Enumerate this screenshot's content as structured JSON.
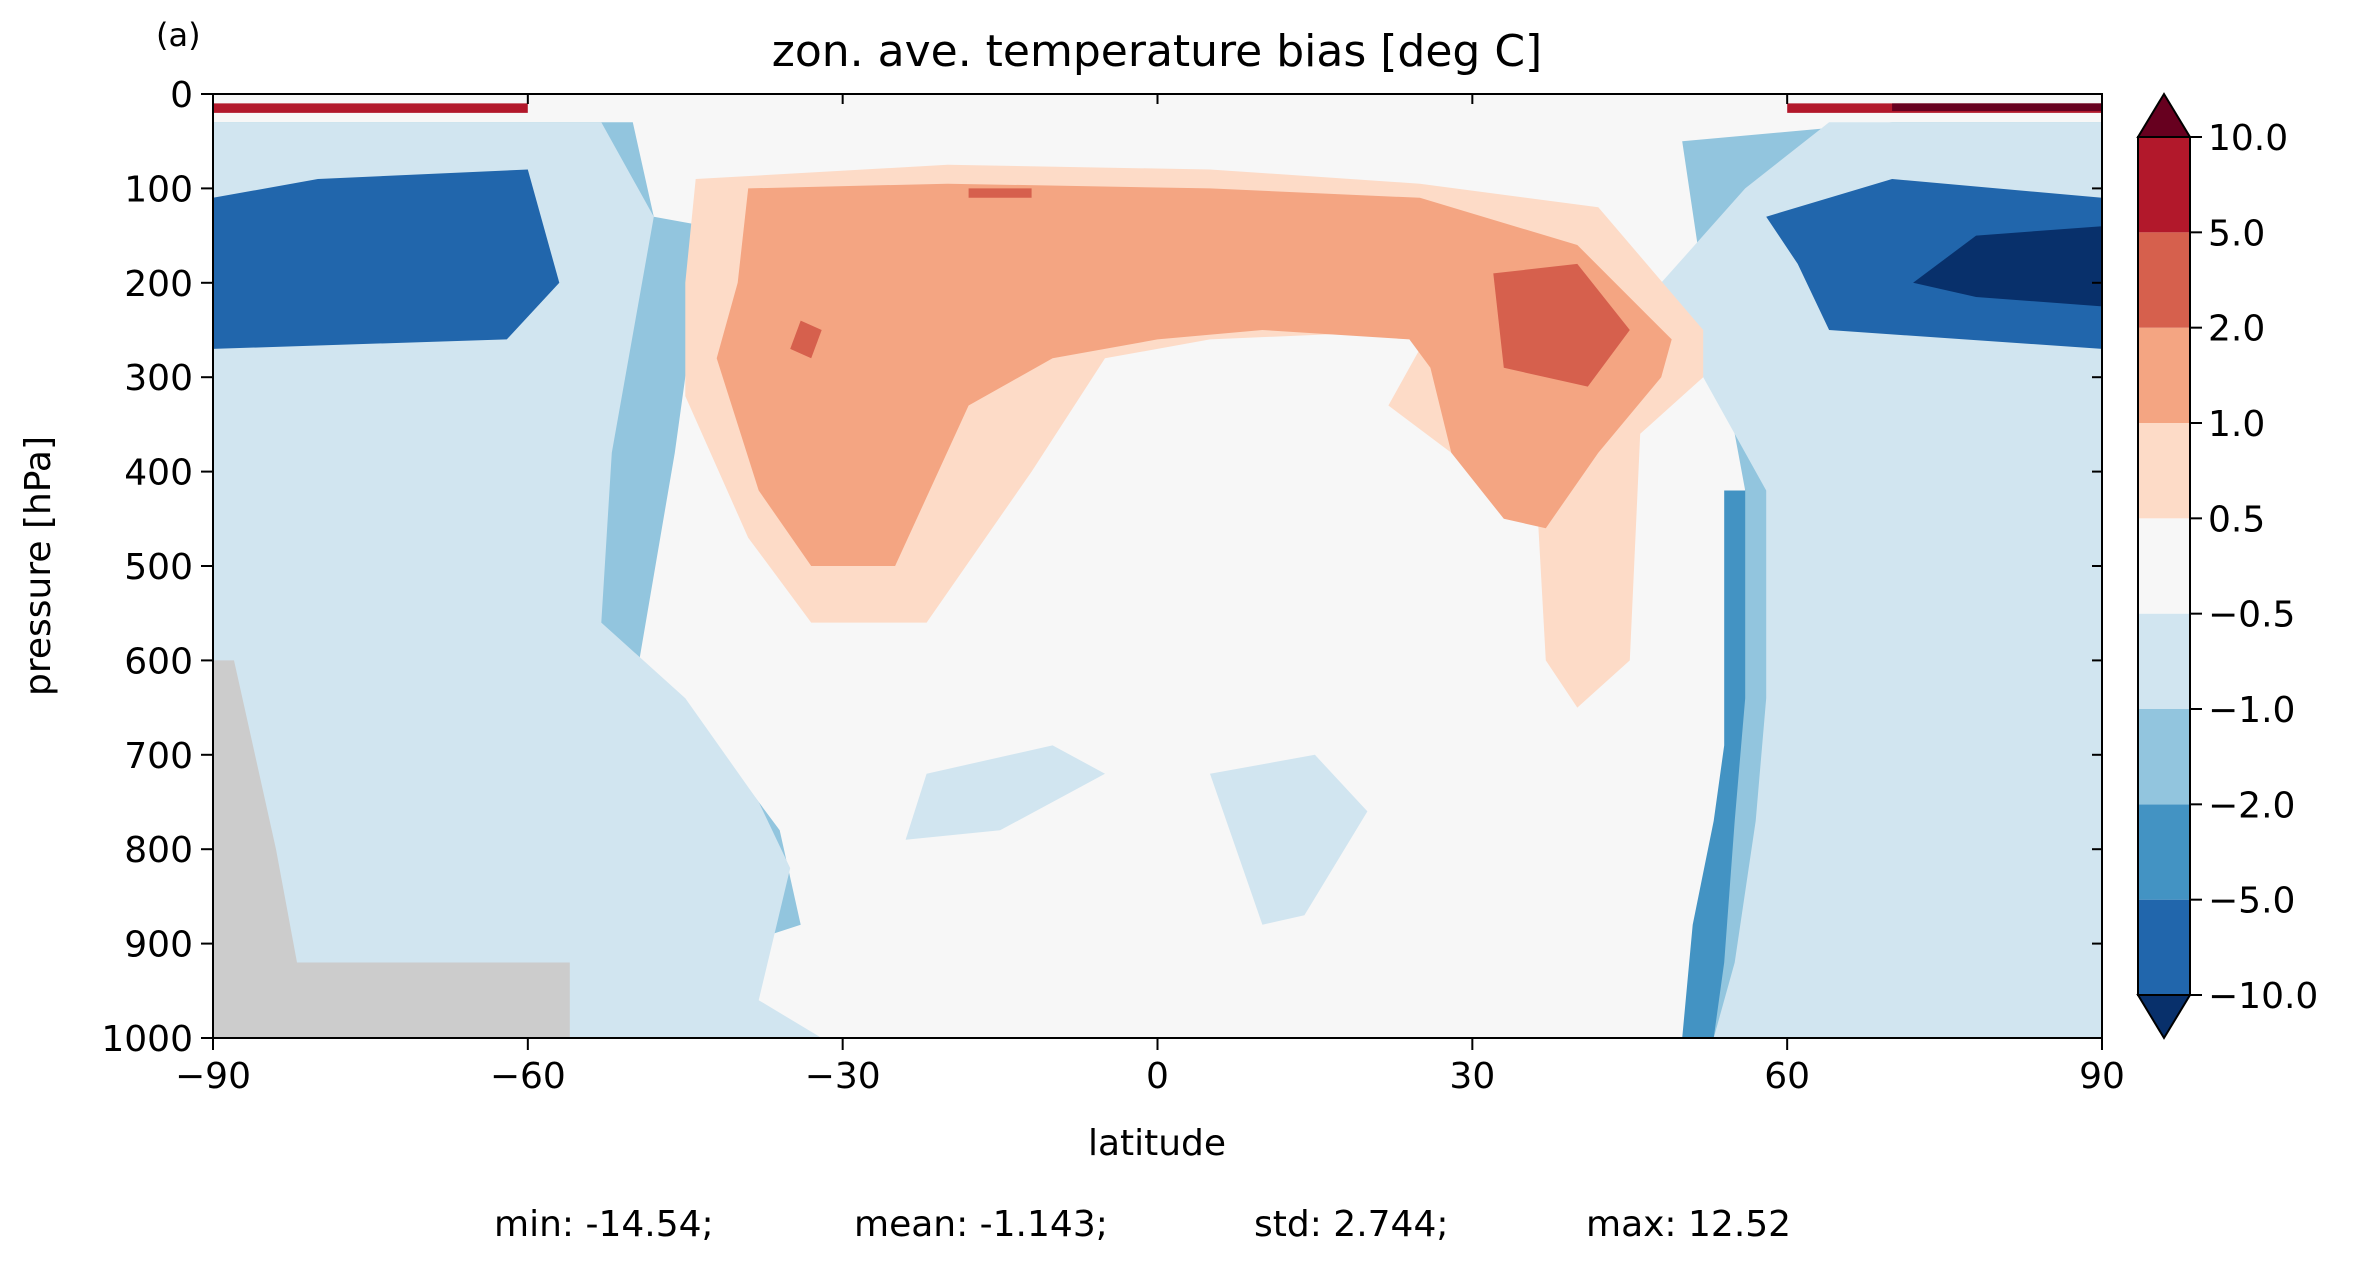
{
  "chart_data": {
    "type": "heatmap",
    "panel_label": "(a)",
    "title": "zon. ave. temperature bias [deg C]",
    "xlabel": "latitude",
    "ylabel": "pressure [hPa]",
    "xlim": [
      -90,
      90
    ],
    "ylim": [
      1000,
      0
    ],
    "y_inverted": true,
    "x_ticks": [
      -90,
      -60,
      -30,
      0,
      30,
      60,
      90
    ],
    "x_tick_labels": [
      "−90",
      "−60",
      "−30",
      "0",
      "30",
      "60",
      "90"
    ],
    "y_ticks": [
      0,
      100,
      200,
      300,
      400,
      500,
      600,
      700,
      800,
      900,
      1000
    ],
    "y_tick_labels": [
      "0",
      "100",
      "200",
      "300",
      "400",
      "500",
      "600",
      "700",
      "800",
      "900",
      "1000"
    ],
    "grid": false,
    "colorbar": {
      "position": "right",
      "extend": "both",
      "levels": [
        -10.0,
        -5.0,
        -2.0,
        -1.0,
        -0.5,
        0.5,
        1.0,
        2.0,
        5.0,
        10.0
      ],
      "tick_labels": [
        "−10.0",
        "−5.0",
        "−2.0",
        "−1.0",
        "−0.5",
        "0.5",
        "1.0",
        "2.0",
        "5.0",
        "10.0"
      ],
      "colors": [
        "#08306b",
        "#2166ac",
        "#4393c3",
        "#92c5de",
        "#d1e5f0",
        "#f7f7f7",
        "#fddbc7",
        "#f4a582",
        "#d6604d",
        "#b2182b",
        "#67001f"
      ]
    },
    "missing_color": "#cccccc",
    "bands": [
      {
        "name": "-5.0 to -2.0",
        "regions": [
          [
            [
              -90,
              60
            ],
            [
              -55,
              60
            ],
            [
              -55,
              270
            ],
            [
              -60,
              270
            ],
            [
              -60,
              470
            ],
            [
              -65,
              470
            ],
            [
              -65,
              640
            ],
            [
              -70,
              640
            ],
            [
              -75,
              620
            ],
            [
              -80,
              640
            ],
            [
              -86,
              620
            ],
            [
              -86,
              600
            ],
            [
              -90,
              600
            ]
          ],
          [
            [
              90,
              60
            ],
            [
              62,
              60
            ],
            [
              62,
              270
            ],
            [
              56,
              270
            ],
            [
              56,
              420
            ],
            [
              54,
              420
            ],
            [
              54,
              690
            ],
            [
              53,
              770
            ],
            [
              51,
              880
            ],
            [
              50,
              1000
            ],
            [
              90,
              1000
            ]
          ]
        ]
      },
      {
        "name": "-2.0 to -1.0",
        "regions": [
          [
            [
              -90,
              30
            ],
            [
              -50,
              30
            ],
            [
              -48,
              130
            ],
            [
              -43,
              140
            ],
            [
              -46,
              380
            ],
            [
              -50,
              640
            ],
            [
              -40,
              720
            ],
            [
              -36,
              780
            ],
            [
              -34,
              880
            ],
            [
              -56,
              960
            ],
            [
              -56,
              1000
            ],
            [
              -88,
              1000
            ],
            [
              -88,
              900
            ],
            [
              -90,
              900
            ]
          ],
          [
            [
              90,
              30
            ],
            [
              70,
              30
            ],
            [
              50,
              50
            ],
            [
              52,
              200
            ],
            [
              54,
              300
            ],
            [
              56,
              420
            ],
            [
              56,
              640
            ],
            [
              55,
              770
            ],
            [
              54,
              920
            ],
            [
              53,
              1000
            ],
            [
              90,
              1000
            ]
          ]
        ]
      },
      {
        "name": "-1.0 to -0.5",
        "regions": [
          [
            [
              -90,
              30
            ],
            [
              -53,
              30
            ],
            [
              -48,
              130
            ],
            [
              -52,
              380
            ],
            [
              -53,
              560
            ],
            [
              -45,
              640
            ],
            [
              -38,
              750
            ],
            [
              -35,
              820
            ],
            [
              -38,
              960
            ],
            [
              -32,
              1000
            ],
            [
              -90,
              1000
            ]
          ],
          [
            [
              90,
              30
            ],
            [
              64,
              30
            ],
            [
              56,
              100
            ],
            [
              48,
              200
            ],
            [
              52,
              300
            ],
            [
              58,
              420
            ],
            [
              58,
              640
            ],
            [
              57,
              770
            ],
            [
              55,
              920
            ],
            [
              53,
              1000
            ],
            [
              90,
              1000
            ]
          ],
          [
            [
              -22,
              720
            ],
            [
              -10,
              690
            ],
            [
              -5,
              720
            ],
            [
              -15,
              780
            ],
            [
              -24,
              790
            ]
          ],
          [
            [
              5,
              720
            ],
            [
              15,
              700
            ],
            [
              20,
              760
            ],
            [
              14,
              870
            ],
            [
              10,
              880
            ]
          ],
          [
            [
              -12,
              200
            ],
            [
              0,
              190
            ],
            [
              12,
              240
            ],
            [
              -4,
              270
            ],
            [
              -12,
              230
            ]
          ]
        ]
      },
      {
        "name": "-5.0 to -10.0",
        "regions": [
          [
            [
              -90,
              110
            ],
            [
              -80,
              90
            ],
            [
              -60,
              80
            ],
            [
              -57,
              200
            ],
            [
              -62,
              260
            ],
            [
              -90,
              270
            ]
          ],
          [
            [
              90,
              110
            ],
            [
              70,
              90
            ],
            [
              58,
              130
            ],
            [
              61,
              180
            ],
            [
              64,
              250
            ],
            [
              90,
              270
            ]
          ]
        ]
      },
      {
        "name": "< -10.0",
        "regions": [
          [
            [
              90,
              140
            ],
            [
              78,
              150
            ],
            [
              72,
              200
            ],
            [
              78,
              215
            ],
            [
              90,
              225
            ]
          ]
        ]
      },
      {
        "name": "0.5 to 1.0",
        "regions": [
          [
            [
              -44,
              90
            ],
            [
              -20,
              75
            ],
            [
              5,
              80
            ],
            [
              25,
              95
            ],
            [
              42,
              120
            ],
            [
              52,
              250
            ],
            [
              52,
              300
            ],
            [
              46,
              360
            ],
            [
              45,
              600
            ],
            [
              40,
              650
            ],
            [
              37,
              600
            ],
            [
              36,
              400
            ],
            [
              28,
              380
            ],
            [
              22,
              330
            ],
            [
              26,
              250
            ],
            [
              5,
              260
            ],
            [
              -5,
              280
            ],
            [
              -12,
              400
            ],
            [
              -22,
              560
            ],
            [
              -33,
              560
            ],
            [
              -39,
              470
            ],
            [
              -45,
              320
            ],
            [
              -45,
              200
            ]
          ]
        ]
      },
      {
        "name": "1.0 to 2.0",
        "regions": [
          [
            [
              -39,
              100
            ],
            [
              -20,
              95
            ],
            [
              5,
              100
            ],
            [
              25,
              110
            ],
            [
              40,
              160
            ],
            [
              49,
              260
            ],
            [
              48,
              300
            ],
            [
              42,
              380
            ],
            [
              37,
              460
            ],
            [
              33,
              450
            ],
            [
              28,
              380
            ],
            [
              26,
              290
            ],
            [
              24,
              260
            ],
            [
              10,
              250
            ],
            [
              0,
              260
            ],
            [
              -10,
              280
            ],
            [
              -18,
              330
            ],
            [
              -25,
              500
            ],
            [
              -33,
              500
            ],
            [
              -38,
              420
            ],
            [
              -42,
              280
            ],
            [
              -40,
              200
            ]
          ]
        ]
      },
      {
        "name": "2.0 to 5.0",
        "regions": [
          [
            [
              32,
              190
            ],
            [
              40,
              180
            ],
            [
              45,
              250
            ],
            [
              41,
              310
            ],
            [
              33,
              290
            ]
          ],
          [
            [
              -34,
              240
            ],
            [
              -32,
              250
            ],
            [
              -33,
              280
            ],
            [
              -35,
              270
            ]
          ],
          [
            [
              -18,
              100
            ],
            [
              -12,
              100
            ],
            [
              -12,
              110
            ],
            [
              -18,
              110
            ]
          ]
        ]
      },
      {
        "name": "5.0 to 10.0",
        "regions": [
          [
            [
              -90,
              10
            ],
            [
              -60,
              10
            ],
            [
              -60,
              20
            ],
            [
              -90,
              20
            ]
          ],
          [
            [
              60,
              10
            ],
            [
              90,
              10
            ],
            [
              90,
              20
            ],
            [
              60,
              20
            ]
          ]
        ]
      },
      {
        "name": "> 10.0",
        "regions": [
          [
            [
              70,
              10
            ],
            [
              90,
              10
            ],
            [
              90,
              18
            ],
            [
              70,
              18
            ]
          ]
        ]
      }
    ],
    "missing_regions": [
      [
        [
          -90,
          600
        ],
        [
          -88,
          600
        ],
        [
          -84,
          800
        ],
        [
          -82,
          920
        ],
        [
          -56,
          920
        ],
        [
          -56,
          1000
        ],
        [
          -90,
          1000
        ]
      ]
    ],
    "stats": {
      "min": "min: -14.54;",
      "mean": "mean: -1.143;",
      "std": "std: 2.744;",
      "max": "max: 12.52"
    }
  }
}
